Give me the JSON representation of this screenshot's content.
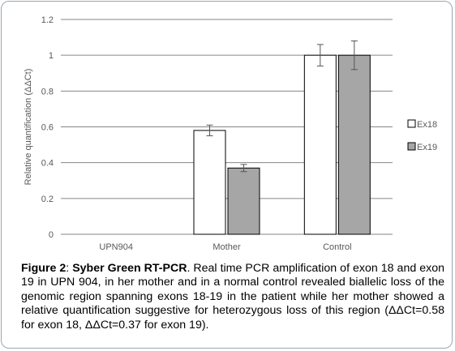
{
  "chart_data": {
    "type": "bar",
    "categories": [
      "UPN904",
      "Mother",
      "Control"
    ],
    "series": [
      {
        "name": "Ex18",
        "values": [
          0,
          0.58,
          1.0
        ],
        "errors": [
          0,
          0.03,
          0.06
        ],
        "color": "#ffffff"
      },
      {
        "name": "Ex19",
        "values": [
          0,
          0.37,
          1.0
        ],
        "errors": [
          0,
          0.02,
          0.08
        ],
        "color": "#a6a6a6"
      }
    ],
    "xlabel": "",
    "ylabel": "Relative quantification (ΔΔCt)",
    "ylim": [
      0,
      1.2
    ],
    "yticks": [
      "0",
      "0.2",
      "0.4",
      "0.6",
      "0.8",
      "1",
      "1.2"
    ],
    "grid": true,
    "legend_position": "right"
  },
  "caption": {
    "label": "Figure 2",
    "colon": ": ",
    "title": "Syber Green RT-PCR",
    "text": ". Real time PCR amplification of exon 18 and exon 19 in UPN 904, in her mother and in a normal control revealed biallelic loss of the genomic region spanning exons 18-19 in the patient while her mother showed a relative quantification suggestive for heterozygous loss of this region (ΔΔCt=0.58 for exon 18, ΔΔCt=0.37 for exon 19)."
  }
}
